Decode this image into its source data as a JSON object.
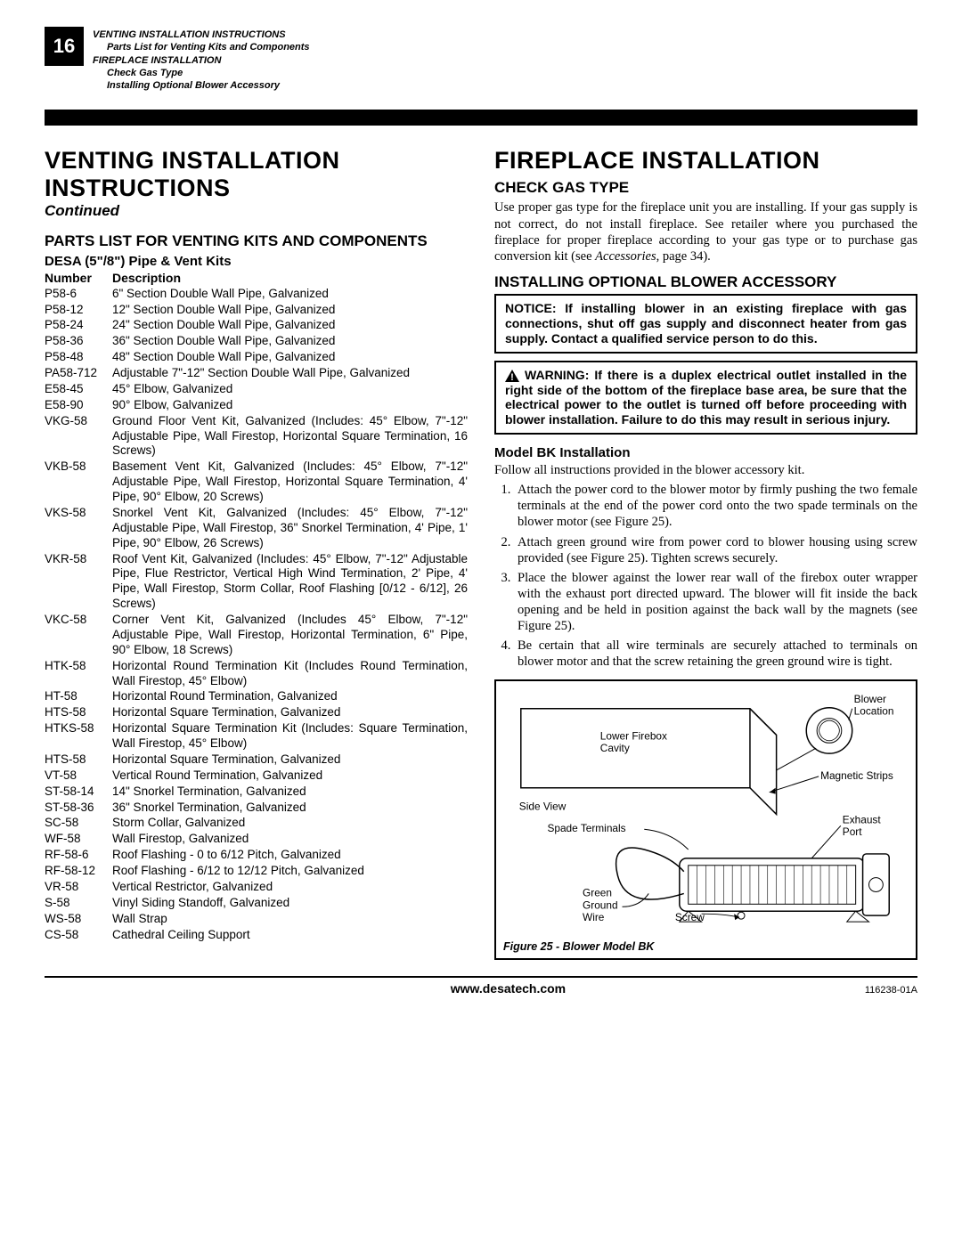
{
  "page_number": "16",
  "header": {
    "l1": "VENTING INSTALLATION INSTRUCTIONS",
    "l2": "Parts List for Venting Kits and Components",
    "l3": "FIREPLACE INSTALLATION",
    "l4": "Check Gas Type",
    "l5": "Installing Optional Blower Accessory"
  },
  "left": {
    "title1": "VENTING INSTALLATION",
    "title2": "INSTRUCTIONS",
    "continued": "Continued",
    "section": "PARTS LIST FOR VENTING KITS AND COMPONENTS",
    "sub": "DESA (5\"/8\") Pipe & Vent Kits",
    "th_num": "Number",
    "th_desc": "Description",
    "parts": [
      {
        "n": "P58-6",
        "d": "6\" Section Double Wall Pipe, Galvanized"
      },
      {
        "n": "P58-12",
        "d": "12\" Section Double Wall Pipe, Galvanized"
      },
      {
        "n": "P58-24",
        "d": "24\" Section Double Wall Pipe, Galvanized"
      },
      {
        "n": "P58-36",
        "d": "36\" Section Double Wall Pipe, Galvanized"
      },
      {
        "n": "P58-48",
        "d": "48\" Section Double Wall Pipe, Galvanized"
      },
      {
        "n": "PA58-712",
        "d": "Adjustable 7\"-12\" Section Double Wall Pipe, Galvanized"
      },
      {
        "n": "E58-45",
        "d": "45° Elbow, Galvanized"
      },
      {
        "n": "E58-90",
        "d": "90° Elbow, Galvanized"
      },
      {
        "n": "VKG-58",
        "d": "Ground Floor Vent Kit, Galvanized (Includes: 45° Elbow, 7\"-12\" Adjustable Pipe, Wall Firestop, Horizontal Square Termination, 16 Screws)"
      },
      {
        "n": "VKB-58",
        "d": "Basement Vent Kit, Galvanized (Includes: 45° Elbow, 7\"-12\" Adjustable Pipe, Wall Firestop, Horizontal Square Termination, 4' Pipe, 90° Elbow, 20 Screws)"
      },
      {
        "n": "VKS-58",
        "d": "Snorkel Vent Kit, Galvanized (Includes: 45° Elbow, 7\"-12\" Adjustable Pipe, Wall Firestop, 36\" Snorkel Termination, 4' Pipe, 1' Pipe, 90° Elbow, 26 Screws)"
      },
      {
        "n": "VKR-58",
        "d": "Roof Vent Kit, Galvanized (Includes: 45° Elbow, 7\"-12\" Adjustable Pipe, Flue Restrictor, Vertical High Wind Termination, 2' Pipe, 4' Pipe, Wall Firestop, Storm Collar, Roof Flashing [0/12 - 6/12], 26 Screws)"
      },
      {
        "n": "VKC-58",
        "d": "Corner Vent Kit, Galvanized (Includes 45° Elbow, 7\"-12\" Adjustable Pipe, Wall Firestop, Horizontal Termination, 6\" Pipe, 90° Elbow, 18 Screws)"
      },
      {
        "n": "HTK-58",
        "d": "Horizontal Round Termination Kit (Includes Round Termination, Wall Firestop, 45° Elbow)"
      },
      {
        "n": "HT-58",
        "d": "Horizontal Round Termination, Galvanized"
      },
      {
        "n": "HTS-58",
        "d": "Horizontal Square Termination, Galvanized"
      },
      {
        "n": "HTKS-58",
        "d": "Horizontal Square Termination Kit (Includes: Square Termination, Wall Firestop, 45° Elbow)"
      },
      {
        "n": "HTS-58",
        "d": "Horizontal Square Termination, Galvanized"
      },
      {
        "n": "VT-58",
        "d": "Vertical Round Termination, Galvanized"
      },
      {
        "n": "ST-58-14",
        "d": "14\" Snorkel Termination, Galvanized"
      },
      {
        "n": "ST-58-36",
        "d": "36\" Snorkel Termination, Galvanized"
      },
      {
        "n": "SC-58",
        "d": "Storm Collar, Galvanized"
      },
      {
        "n": "WF-58",
        "d": "Wall Firestop, Galvanized"
      },
      {
        "n": "RF-58-6",
        "d": "Roof Flashing - 0 to 6/12 Pitch, Galvanized"
      },
      {
        "n": "RF-58-12",
        "d": "Roof Flashing - 6/12 to 12/12 Pitch, Galvanized"
      },
      {
        "n": "VR-58",
        "d": "Vertical Restrictor, Galvanized"
      },
      {
        "n": "S-58",
        "d": "Vinyl Siding Standoff, Galvanized"
      },
      {
        "n": "WS-58",
        "d": "Wall Strap"
      },
      {
        "n": "CS-58",
        "d": "Cathedral Ceiling Support"
      }
    ]
  },
  "right": {
    "title": "FIREPLACE INSTALLATION",
    "h1": "CHECK GAS TYPE",
    "p1a": "Use proper gas type for the fireplace unit you are installing. If your gas supply is not correct, do not install fireplace. See retailer where you purchased the fireplace for proper fireplace according to your gas type or to purchase gas conversion kit (see ",
    "p1i": "Accessories",
    "p1b": ", page 34).",
    "h2": "INSTALLING OPTIONAL BLOWER ACCESSORY",
    "notice": "NOTICE: If installing blower in an existing fireplace with gas connections, shut off gas supply and disconnect heater from gas supply. Contact a qualified service person to do this.",
    "warn": "WARNING: If there is a duplex electrical outlet installed in the right side of the bottom of the fireplace base area, be sure that the electrical power to the outlet is turned off before proceeding with blower installation. Failure to do this may result in serious injury.",
    "h3": "Model BK Installation",
    "p2": "Follow all instructions provided in the blower accessory kit.",
    "steps": [
      "Attach the power cord to the blower motor by firmly pushing the two female terminals at the end of the power cord onto the two spade terminals on the blower motor (see Figure 25).",
      "Attach green ground wire from power cord to blower housing using screw provided (see Figure 25). Tighten screws securely.",
      "Place the blower against the lower rear wall of the firebox outer wrapper with the exhaust port directed upward. The blower will fit inside the back opening and be held in position against the back wall by the magnets (see Figure 25).",
      "Be certain that all wire terminals are securely attached to terminals on blower motor and that the screw retaining the green ground wire is tight."
    ],
    "figure": {
      "caption": "Figure 25 - Blower Model BK",
      "labels": {
        "blower_loc": "Blower\nLocation",
        "lower_firebox": "Lower Firebox\nCavity",
        "magnetic": "Magnetic Strips",
        "side_view": "Side View",
        "spade": "Spade Terminals",
        "exhaust": "Exhaust\nPort",
        "green_ground": "Green\nGround\nWire",
        "screw": "Screw"
      }
    }
  },
  "footer": {
    "url": "www.desatech.com",
    "doc": "116238-01A"
  },
  "colors": {
    "black": "#000000",
    "white": "#ffffff"
  }
}
